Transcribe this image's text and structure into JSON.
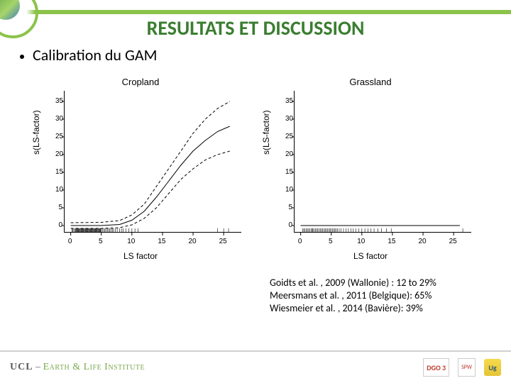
{
  "header": {
    "title": "RESULTATS ET DISCUSSION"
  },
  "bullet": {
    "text": "Calibration du GAM"
  },
  "charts": {
    "ylab": "s(LS-factor)",
    "xlab": "LS factor",
    "yticks": [
      0,
      5,
      10,
      15,
      20,
      25,
      30,
      35
    ],
    "xticks": [
      0,
      5,
      10,
      15,
      20,
      25
    ],
    "ylim": [
      -2,
      38
    ],
    "xlim": [
      -1,
      28
    ],
    "line_color": "#000000",
    "line_width": 1,
    "dash_pattern": "4 3",
    "background_color": "#ffffff",
    "left": {
      "title": "Cropland",
      "solid": [
        [
          0,
          0
        ],
        [
          5,
          0
        ],
        [
          8,
          0.3
        ],
        [
          10,
          1.5
        ],
        [
          12,
          4
        ],
        [
          14,
          8
        ],
        [
          16,
          12.5
        ],
        [
          18,
          17
        ],
        [
          20,
          21
        ],
        [
          22,
          24
        ],
        [
          24,
          26.5
        ],
        [
          26,
          28
        ]
      ],
      "upper": [
        [
          0,
          0.8
        ],
        [
          5,
          0.9
        ],
        [
          8,
          1.4
        ],
        [
          10,
          3
        ],
        [
          12,
          6
        ],
        [
          14,
          11
        ],
        [
          16,
          16
        ],
        [
          18,
          21
        ],
        [
          20,
          26
        ],
        [
          22,
          30
        ],
        [
          24,
          33
        ],
        [
          26,
          35
        ]
      ],
      "lower": [
        [
          0,
          -0.8
        ],
        [
          5,
          -0.8
        ],
        [
          8,
          -0.6
        ],
        [
          10,
          0.2
        ],
        [
          12,
          2
        ],
        [
          14,
          5
        ],
        [
          16,
          9
        ],
        [
          18,
          13
        ],
        [
          20,
          16
        ],
        [
          22,
          18.5
        ],
        [
          24,
          20
        ],
        [
          26,
          21
        ]
      ],
      "rug": [
        0.2,
        0.3,
        0.5,
        0.7,
        0.8,
        0.9,
        1.0,
        1.1,
        1.2,
        1.3,
        1.4,
        1.5,
        1.6,
        1.7,
        1.8,
        1.9,
        2.0,
        2.1,
        2.2,
        2.3,
        2.4,
        2.5,
        2.6,
        2.7,
        2.8,
        2.9,
        3.0,
        3.1,
        3.2,
        3.3,
        3.4,
        3.5,
        3.6,
        3.7,
        3.8,
        3.9,
        4.0,
        4.1,
        4.2,
        4.3,
        4.4,
        4.5,
        4.6,
        4.7,
        4.8,
        4.9,
        5.0,
        5.2,
        5.4,
        5.6,
        5.8,
        6.0,
        6.2,
        6.4,
        6.6,
        6.8,
        7.0,
        7.3,
        7.6,
        8.0,
        8.3,
        8.6,
        9.0,
        9.5,
        10.0,
        10.5,
        11.0,
        24.0,
        25.0,
        25.8
      ]
    },
    "right": {
      "title": "Grassland",
      "solid": [
        [
          0,
          0
        ],
        [
          26,
          0
        ]
      ],
      "upper": [
        [
          0,
          0
        ],
        [
          26,
          0
        ]
      ],
      "lower": [
        [
          0,
          0
        ],
        [
          26,
          0
        ]
      ],
      "rug": [
        0.3,
        0.5,
        0.7,
        0.9,
        1.1,
        1.3,
        1.5,
        1.7,
        1.9,
        2.0,
        2.2,
        2.4,
        2.6,
        2.8,
        3.0,
        3.2,
        3.4,
        3.6,
        3.8,
        4.0,
        4.2,
        4.4,
        4.6,
        4.8,
        5.0,
        5.2,
        5.4,
        5.6,
        5.8,
        6.0,
        6.3,
        6.6,
        7.0,
        7.4,
        7.8,
        8.2,
        8.6,
        9.0,
        9.5,
        10.0,
        10.5,
        11.0,
        11.5,
        12.0,
        12.6,
        13.2,
        14.0,
        14.8,
        26.5
      ]
    }
  },
  "references": {
    "line1": "Goidts et al. , 2009 (Wallonie) : 12 to 29%",
    "line2": "Meersmans et al. , 2011 (Belgique): 65%",
    "line3": "Wiesmeier et al. , 2014 (Bavière): 39%"
  },
  "footer": {
    "ucl": "UCL",
    "dash": " – ",
    "eli": "Earth & Life Institute",
    "dgo": "DGO 3",
    "spw": "SPW",
    "ulg": "Ug"
  }
}
